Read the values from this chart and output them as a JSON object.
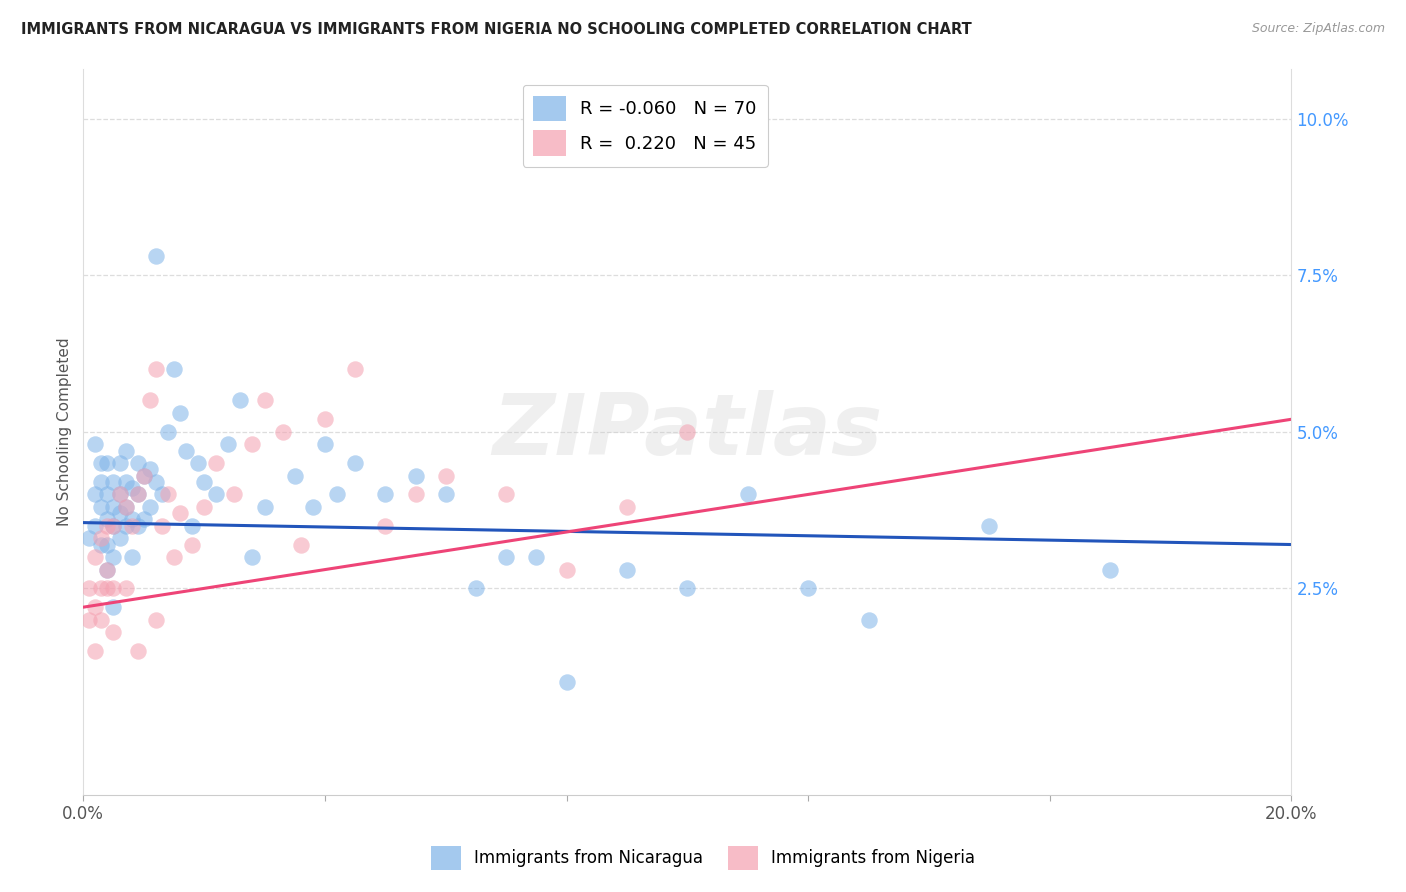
{
  "title": "IMMIGRANTS FROM NICARAGUA VS IMMIGRANTS FROM NIGERIA NO SCHOOLING COMPLETED CORRELATION CHART",
  "source": "Source: ZipAtlas.com",
  "ylabel": "No Schooling Completed",
  "xlim": [
    0.0,
    0.2
  ],
  "ylim": [
    -0.008,
    0.108
  ],
  "color_nicaragua": "#7EB3E8",
  "color_nigeria": "#F4A0B0",
  "blue_line_x": [
    0.0,
    0.2
  ],
  "blue_line_y": [
    0.0355,
    0.032
  ],
  "pink_line_x": [
    0.0,
    0.2
  ],
  "pink_line_y": [
    0.022,
    0.052
  ],
  "nicaragua_x": [
    0.001,
    0.002,
    0.002,
    0.003,
    0.003,
    0.003,
    0.004,
    0.004,
    0.004,
    0.004,
    0.005,
    0.005,
    0.005,
    0.005,
    0.006,
    0.006,
    0.006,
    0.006,
    0.007,
    0.007,
    0.007,
    0.007,
    0.008,
    0.008,
    0.008,
    0.009,
    0.009,
    0.009,
    0.01,
    0.01,
    0.011,
    0.011,
    0.012,
    0.012,
    0.013,
    0.014,
    0.015,
    0.016,
    0.017,
    0.018,
    0.019,
    0.02,
    0.022,
    0.024,
    0.026,
    0.028,
    0.03,
    0.035,
    0.038,
    0.04,
    0.042,
    0.045,
    0.05,
    0.055,
    0.06,
    0.065,
    0.07,
    0.075,
    0.08,
    0.09,
    0.1,
    0.11,
    0.12,
    0.13,
    0.15,
    0.17,
    0.002,
    0.003,
    0.004,
    0.005
  ],
  "nicaragua_y": [
    0.033,
    0.035,
    0.04,
    0.038,
    0.042,
    0.045,
    0.032,
    0.036,
    0.04,
    0.045,
    0.03,
    0.035,
    0.038,
    0.042,
    0.033,
    0.037,
    0.04,
    0.045,
    0.035,
    0.038,
    0.042,
    0.047,
    0.03,
    0.036,
    0.041,
    0.035,
    0.04,
    0.045,
    0.036,
    0.043,
    0.038,
    0.044,
    0.078,
    0.042,
    0.04,
    0.05,
    0.06,
    0.053,
    0.047,
    0.035,
    0.045,
    0.042,
    0.04,
    0.048,
    0.055,
    0.03,
    0.038,
    0.043,
    0.038,
    0.048,
    0.04,
    0.045,
    0.04,
    0.043,
    0.04,
    0.025,
    0.03,
    0.03,
    0.01,
    0.028,
    0.025,
    0.04,
    0.025,
    0.02,
    0.035,
    0.028,
    0.048,
    0.032,
    0.028,
    0.022
  ],
  "nigeria_x": [
    0.001,
    0.001,
    0.002,
    0.002,
    0.003,
    0.003,
    0.004,
    0.004,
    0.005,
    0.005,
    0.006,
    0.007,
    0.008,
    0.009,
    0.01,
    0.011,
    0.012,
    0.013,
    0.014,
    0.015,
    0.016,
    0.018,
    0.02,
    0.022,
    0.025,
    0.028,
    0.03,
    0.033,
    0.036,
    0.04,
    0.045,
    0.05,
    0.055,
    0.06,
    0.07,
    0.08,
    0.09,
    0.1,
    0.002,
    0.003,
    0.004,
    0.005,
    0.007,
    0.009,
    0.012
  ],
  "nigeria_y": [
    0.02,
    0.025,
    0.022,
    0.03,
    0.025,
    0.033,
    0.028,
    0.035,
    0.025,
    0.035,
    0.04,
    0.038,
    0.035,
    0.04,
    0.043,
    0.055,
    0.06,
    0.035,
    0.04,
    0.03,
    0.037,
    0.032,
    0.038,
    0.045,
    0.04,
    0.048,
    0.055,
    0.05,
    0.032,
    0.052,
    0.06,
    0.035,
    0.04,
    0.043,
    0.04,
    0.028,
    0.038,
    0.05,
    0.015,
    0.02,
    0.025,
    0.018,
    0.025,
    0.015,
    0.02
  ],
  "watermark_text": "ZIPatlas",
  "legend1_label": "R = -0.060   N = 70",
  "legend2_label": "R =  0.220   N = 45",
  "bottom_legend1": "Immigrants from Nicaragua",
  "bottom_legend2": "Immigrants from Nigeria"
}
